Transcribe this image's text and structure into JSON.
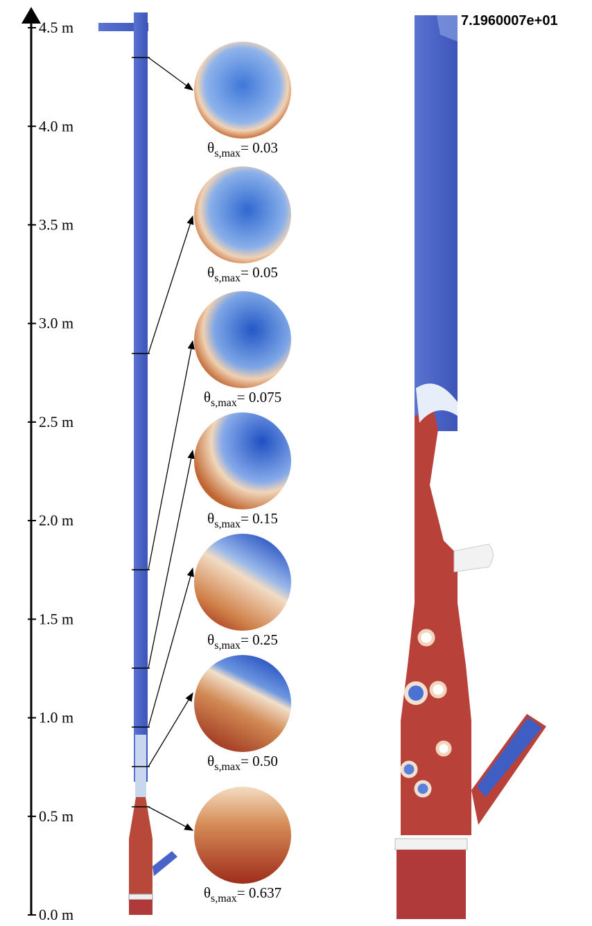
{
  "axis": {
    "ticks": [
      "4.5 m",
      "4.0 m",
      "3.5 m",
      "3.0 m",
      "2.5 m",
      "2.0 m",
      "1.5 m",
      "1.0 m",
      "0.5 m",
      "0.0 m"
    ]
  },
  "slices": [
    {
      "symbol": "θ",
      "subscript": "s,max",
      "value": "= 0.03"
    },
    {
      "symbol": "θ",
      "subscript": "s,max",
      "value": "= 0.05"
    },
    {
      "symbol": "θ",
      "subscript": "s,max",
      "value": "= 0.075"
    },
    {
      "symbol": "θ",
      "subscript": "s,max",
      "value": "= 0.15"
    },
    {
      "symbol": "θ",
      "subscript": "s,max",
      "value": "= 0.25"
    },
    {
      "symbol": "θ",
      "subscript": "s,max",
      "value": "= 0.50"
    },
    {
      "symbol": "θ",
      "subscript": "s,max",
      "value": "= 0.637"
    }
  ],
  "legend_max": "7.1960007e+01"
}
